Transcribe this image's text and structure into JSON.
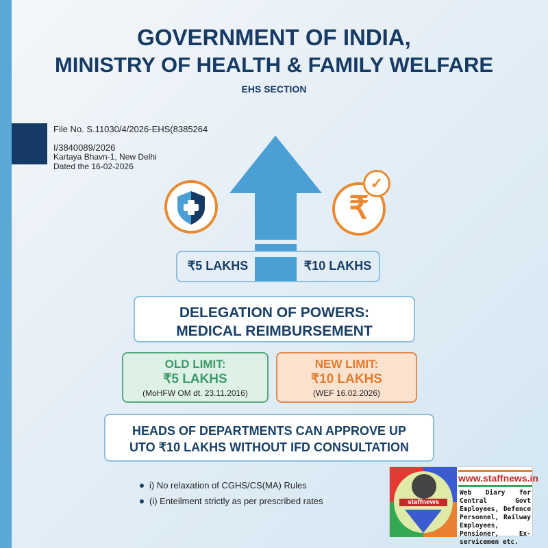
{
  "header": {
    "line1": "GOVERNMENT OF INDIA,",
    "line2": "MINISTRY OF HEALTH & FAMILY WELFARE",
    "section": "EHS SECTION"
  },
  "file_info": {
    "file_no": "File No. S.11030/4/2026-EHS(8385264",
    "ref": "I/3840089/2026",
    "address": "Kartaya Bhavn-1, New Delhi",
    "dated": "Dated the 16-02-2026"
  },
  "icons": {
    "left": "shield-medical-icon",
    "right": "rupee-check-icon",
    "center": "up-arrow-icon"
  },
  "amounts": {
    "from": "₹5 LAKHS",
    "to": "₹10 LAKHS"
  },
  "headline": {
    "line1": "DELEGATION OF POWERS:",
    "line2": "MEDICAL REIMBURSEMENT"
  },
  "old_limit": {
    "label": "OLD LIMIT:",
    "value": "₹5 LAKHS",
    "note": "(MoHFW OM dt. 23.11.2016)",
    "color": "#3e9a6a"
  },
  "new_limit": {
    "label": "NEW LIMIT:",
    "value": "₹10 LAKHS",
    "note": "(WEF 16.02.2026)",
    "color": "#e47a2c"
  },
  "approval": {
    "line1": "HEADS OF DEPARTMENTS CAN APPROVE UP",
    "line2": "UTO ₹10 LAKHS WITHOUT IFD CONSULTATION"
  },
  "bullets": [
    "i) No relaxation of CGHS/CS(MA) Rules",
    "(i) Enteilment strictly as per prescribed rates"
  ],
  "badge": {
    "logo_text": "staffnews",
    "url": "www.staffnews.in",
    "desc": "Web Diary for Central Govt Employees, Defence Personnel, Railway Employees, Pensioner, Ex-servicemen etc."
  }
}
